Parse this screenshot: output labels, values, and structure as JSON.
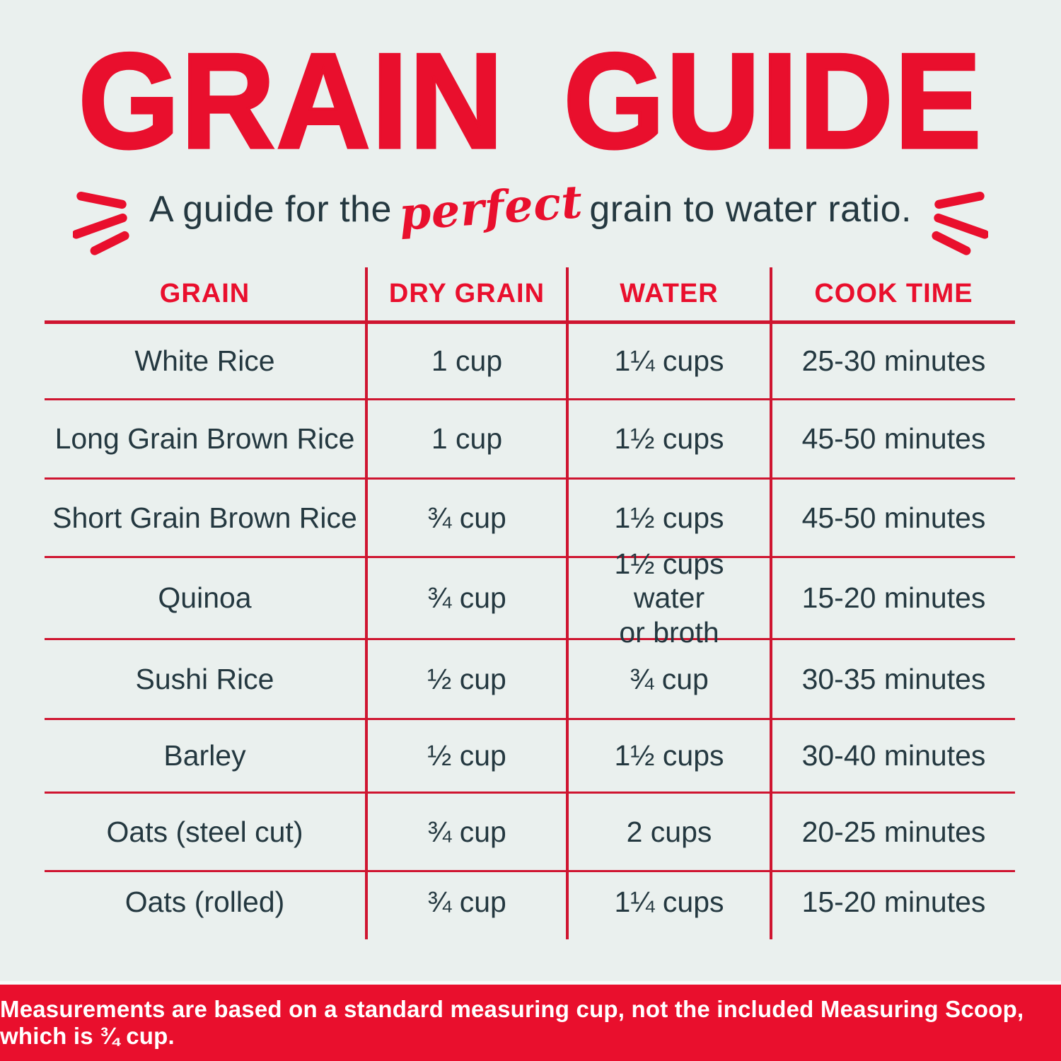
{
  "theme": {
    "bg": "#eaf0ee",
    "accent_red": "#e90f2d",
    "line_red": "#cf1530",
    "text_dark": "#243840",
    "footer_text": "#ffffff"
  },
  "header": {
    "title": "GRAIN GUIDE",
    "subtitle_prefix": "A guide for the",
    "subtitle_highlight": "perfect",
    "subtitle_suffix": "grain to water ratio.",
    "emphasis_marks": "three-red-burst-strokes-each-side"
  },
  "table": {
    "columns": [
      "GRAIN",
      "DRY GRAIN",
      "WATER",
      "COOK TIME"
    ],
    "rows": [
      {
        "grain": "White Rice",
        "dry_grain": "1 cup",
        "water": "1¼ cups",
        "cook_time": "25-30 minutes"
      },
      {
        "grain": "Long Grain Brown Rice",
        "dry_grain": "1 cup",
        "water": "1½ cups",
        "cook_time": "45-50 minutes"
      },
      {
        "grain": "Short Grain Brown Rice",
        "dry_grain": "¾ cup",
        "water": "1½ cups",
        "cook_time": "45-50 minutes"
      },
      {
        "grain": "Quinoa",
        "dry_grain": "¾ cup",
        "water": "1½ cups water\nor broth",
        "cook_time": "15-20 minutes"
      },
      {
        "grain": "Sushi Rice",
        "dry_grain": "½ cup",
        "water": "¾ cup",
        "cook_time": "30-35 minutes"
      },
      {
        "grain": "Barley",
        "dry_grain": "½ cup",
        "water": "1½ cups",
        "cook_time": "30-40 minutes"
      },
      {
        "grain": "Oats (steel cut)",
        "dry_grain": "¾ cup",
        "water": "2 cups",
        "cook_time": "20-25 minutes"
      },
      {
        "grain": "Oats (rolled)",
        "dry_grain": "¾ cup",
        "water": "1¼ cups",
        "cook_time": "15-20 minutes"
      }
    ]
  },
  "footer": {
    "note": "Measurements are based on a standard measuring cup, not the included Measuring Scoop, which is ¾ cup."
  }
}
